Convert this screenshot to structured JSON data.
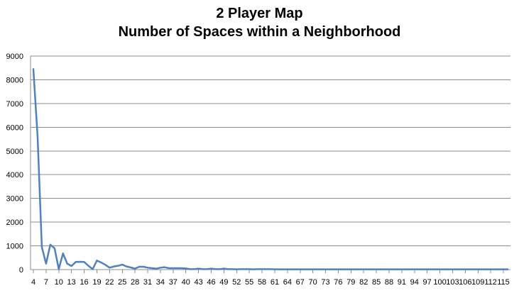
{
  "chart_data": {
    "type": "line",
    "title": "2 Player Map",
    "subtitle": "Number of Spaces within a Neighborhood",
    "xlabel": "",
    "ylabel": "",
    "ylim": [
      0,
      9000
    ],
    "yticks": [
      "0",
      "1000",
      "2000",
      "3000",
      "4000",
      "5000",
      "6000",
      "7000",
      "8000",
      "9000"
    ],
    "xticks": [
      "4",
      "7",
      "10",
      "13",
      "16",
      "19",
      "22",
      "25",
      "28",
      "31",
      "34",
      "37",
      "40",
      "43",
      "46",
      "49",
      "52",
      "55",
      "58",
      "61",
      "64",
      "67",
      "70",
      "73",
      "76",
      "79",
      "82",
      "85",
      "88",
      "91",
      "94",
      "97",
      "100",
      "103",
      "106",
      "109",
      "112",
      "115"
    ],
    "grid": "horizontal",
    "legend": "none",
    "series_color": "#4f81bd",
    "x": [
      4,
      5,
      6,
      7,
      8,
      9,
      10,
      11,
      12,
      13,
      14,
      15,
      16,
      17,
      18,
      19,
      20,
      21,
      22,
      23,
      24,
      25,
      26,
      27,
      28,
      29,
      30,
      31,
      32,
      33,
      34,
      35,
      36,
      37,
      38,
      39,
      40,
      41,
      42,
      43,
      44,
      45,
      46,
      47,
      48,
      49,
      50,
      51,
      52,
      53,
      54,
      55,
      56,
      57,
      58,
      59,
      60,
      61,
      62,
      63,
      64,
      65,
      66,
      67,
      68,
      69,
      70,
      71,
      72,
      73,
      74,
      75,
      76,
      77,
      78,
      79,
      80,
      81,
      82,
      83,
      84,
      85,
      86,
      87,
      88,
      89,
      90,
      91,
      92,
      93,
      94,
      95,
      96,
      97,
      98,
      99,
      100,
      101,
      102,
      103,
      104,
      105,
      106,
      107,
      108,
      109,
      110,
      111,
      112,
      113,
      114,
      115,
      116
    ],
    "values": [
      8450,
      5600,
      950,
      250,
      1050,
      900,
      20,
      680,
      250,
      150,
      320,
      330,
      320,
      160,
      20,
      380,
      300,
      200,
      80,
      130,
      160,
      210,
      130,
      90,
      40,
      120,
      120,
      80,
      60,
      40,
      80,
      100,
      60,
      60,
      60,
      60,
      50,
      20,
      20,
      40,
      20,
      20,
      40,
      20,
      20,
      40,
      20,
      20,
      10,
      20,
      20,
      20,
      10,
      20,
      20,
      20,
      20,
      10,
      10,
      10,
      10,
      10,
      10,
      10,
      10,
      10,
      10,
      10,
      10,
      10,
      10,
      10,
      10,
      10,
      10,
      10,
      10,
      10,
      10,
      10,
      10,
      10,
      10,
      10,
      10,
      10,
      10,
      10,
      10,
      10,
      10,
      10,
      10,
      10,
      10,
      10,
      10,
      10,
      10,
      10,
      10,
      10,
      10,
      10,
      10,
      10,
      10,
      10,
      10,
      10,
      10,
      10,
      10
    ]
  }
}
